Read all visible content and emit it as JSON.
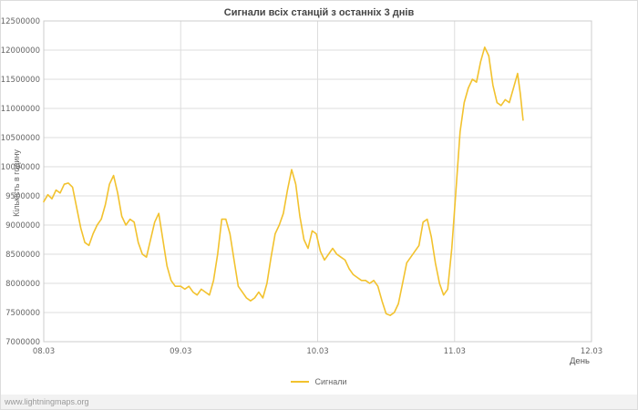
{
  "footer": {
    "watermark": "www.lightningmaps.org"
  },
  "chart_data": {
    "type": "line",
    "title": "Сигнали всіх станцій з останніх 3 днів",
    "xlabel": "День",
    "ylabel": "Кількість в годину",
    "grid": true,
    "legend_position": "bottom",
    "line_color": "#f2c22e",
    "grid_color": "#dddddd",
    "border_color": "#cccccc",
    "xlim": [
      0,
      4
    ],
    "ylim": [
      7000000,
      12500000
    ],
    "x_ticks": [
      {
        "pos": 0,
        "label": "08.03"
      },
      {
        "pos": 1,
        "label": "09.03"
      },
      {
        "pos": 2,
        "label": "10.03"
      },
      {
        "pos": 3,
        "label": "11.03"
      },
      {
        "pos": 4,
        "label": "12.03"
      }
    ],
    "y_ticks": [
      7000000,
      7500000,
      8000000,
      8500000,
      9000000,
      9500000,
      10000000,
      10500000,
      11000000,
      11500000,
      12000000,
      12500000
    ],
    "series": [
      {
        "name": "Сигнали",
        "points": [
          [
            0,
            9400000
          ],
          [
            0.03,
            9520000
          ],
          [
            0.06,
            9450000
          ],
          [
            0.09,
            9600000
          ],
          [
            0.12,
            9550000
          ],
          [
            0.15,
            9700000
          ],
          [
            0.18,
            9720000
          ],
          [
            0.21,
            9650000
          ],
          [
            0.24,
            9300000
          ],
          [
            0.27,
            8950000
          ],
          [
            0.3,
            8700000
          ],
          [
            0.33,
            8650000
          ],
          [
            0.36,
            8850000
          ],
          [
            0.39,
            9000000
          ],
          [
            0.42,
            9100000
          ],
          [
            0.45,
            9350000
          ],
          [
            0.48,
            9700000
          ],
          [
            0.51,
            9850000
          ],
          [
            0.54,
            9550000
          ],
          [
            0.57,
            9150000
          ],
          [
            0.6,
            9000000
          ],
          [
            0.63,
            9100000
          ],
          [
            0.66,
            9050000
          ],
          [
            0.69,
            8700000
          ],
          [
            0.72,
            8500000
          ],
          [
            0.75,
            8450000
          ],
          [
            0.78,
            8750000
          ],
          [
            0.81,
            9050000
          ],
          [
            0.84,
            9200000
          ],
          [
            0.87,
            8750000
          ],
          [
            0.9,
            8300000
          ],
          [
            0.93,
            8050000
          ],
          [
            0.96,
            7950000
          ],
          [
            1,
            7950000
          ],
          [
            1.03,
            7900000
          ],
          [
            1.06,
            7950000
          ],
          [
            1.09,
            7850000
          ],
          [
            1.12,
            7800000
          ],
          [
            1.15,
            7900000
          ],
          [
            1.18,
            7850000
          ],
          [
            1.21,
            7800000
          ],
          [
            1.24,
            8050000
          ],
          [
            1.27,
            8500000
          ],
          [
            1.3,
            9100000
          ],
          [
            1.33,
            9100000
          ],
          [
            1.36,
            8850000
          ],
          [
            1.39,
            8400000
          ],
          [
            1.42,
            7950000
          ],
          [
            1.45,
            7850000
          ],
          [
            1.48,
            7750000
          ],
          [
            1.51,
            7700000
          ],
          [
            1.54,
            7750000
          ],
          [
            1.57,
            7850000
          ],
          [
            1.6,
            7750000
          ],
          [
            1.63,
            8000000
          ],
          [
            1.66,
            8450000
          ],
          [
            1.69,
            8850000
          ],
          [
            1.72,
            9000000
          ],
          [
            1.75,
            9200000
          ],
          [
            1.78,
            9600000
          ],
          [
            1.81,
            9950000
          ],
          [
            1.84,
            9700000
          ],
          [
            1.87,
            9150000
          ],
          [
            1.9,
            8750000
          ],
          [
            1.93,
            8600000
          ],
          [
            1.96,
            8900000
          ],
          [
            1.99,
            8850000
          ],
          [
            2.02,
            8550000
          ],
          [
            2.05,
            8400000
          ],
          [
            2.08,
            8500000
          ],
          [
            2.11,
            8600000
          ],
          [
            2.14,
            8500000
          ],
          [
            2.17,
            8450000
          ],
          [
            2.2,
            8400000
          ],
          [
            2.23,
            8250000
          ],
          [
            2.26,
            8150000
          ],
          [
            2.29,
            8100000
          ],
          [
            2.32,
            8050000
          ],
          [
            2.35,
            8050000
          ],
          [
            2.38,
            8000000
          ],
          [
            2.41,
            8050000
          ],
          [
            2.44,
            7950000
          ],
          [
            2.47,
            7700000
          ],
          [
            2.5,
            7480000
          ],
          [
            2.53,
            7450000
          ],
          [
            2.56,
            7500000
          ],
          [
            2.59,
            7650000
          ],
          [
            2.62,
            8000000
          ],
          [
            2.65,
            8350000
          ],
          [
            2.68,
            8450000
          ],
          [
            2.71,
            8550000
          ],
          [
            2.74,
            8650000
          ],
          [
            2.77,
            9050000
          ],
          [
            2.8,
            9100000
          ],
          [
            2.83,
            8800000
          ],
          [
            2.86,
            8350000
          ],
          [
            2.89,
            8000000
          ],
          [
            2.92,
            7800000
          ],
          [
            2.95,
            7900000
          ],
          [
            2.98,
            8600000
          ],
          [
            3.01,
            9600000
          ],
          [
            3.04,
            10600000
          ],
          [
            3.07,
            11100000
          ],
          [
            3.1,
            11350000
          ],
          [
            3.13,
            11500000
          ],
          [
            3.16,
            11450000
          ],
          [
            3.19,
            11800000
          ],
          [
            3.22,
            12050000
          ],
          [
            3.25,
            11900000
          ],
          [
            3.28,
            11400000
          ],
          [
            3.31,
            11100000
          ],
          [
            3.34,
            11050000
          ],
          [
            3.37,
            11150000
          ],
          [
            3.4,
            11100000
          ],
          [
            3.43,
            11350000
          ],
          [
            3.46,
            11600000
          ],
          [
            3.48,
            11250000
          ],
          [
            3.5,
            10800000
          ]
        ]
      }
    ]
  }
}
